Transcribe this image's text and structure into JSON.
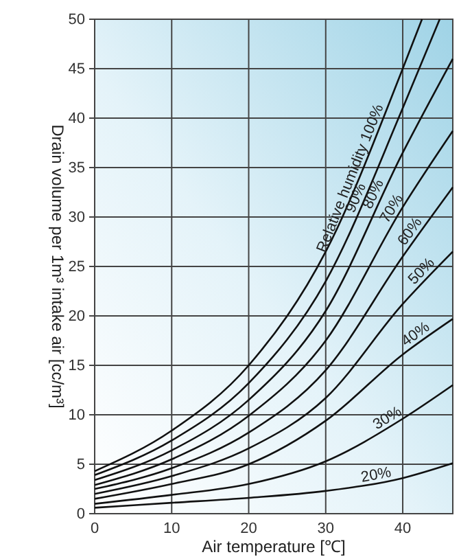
{
  "chart_data": {
    "type": "line",
    "xlabel": "Air temperature [℃]",
    "ylabel": "Drain volume per 1m³ intake air [cc/m³]",
    "annotations": [
      "Relative humidity"
    ],
    "xlim": [
      0,
      46.5
    ],
    "ylim": [
      0,
      50
    ],
    "xticks": [
      0,
      10,
      20,
      30,
      40
    ],
    "yticks": [
      0,
      5,
      10,
      15,
      20,
      25,
      30,
      35,
      40,
      45,
      50
    ],
    "grid": true,
    "marker": "none",
    "line_style": "solid",
    "series": [
      {
        "name": "100%",
        "color": "#111111",
        "x": [
          0,
          10,
          20,
          30,
          40,
          42.5
        ],
        "values": [
          4.3,
          8.4,
          15.0,
          26.5,
          45,
          50
        ]
      },
      {
        "name": "90%",
        "color": "#111111",
        "x": [
          0,
          10,
          20,
          30,
          40,
          44.8
        ],
        "values": [
          3.9,
          7.4,
          13.2,
          23.5,
          41,
          50
        ]
      },
      {
        "name": "80%",
        "color": "#111111",
        "x": [
          0,
          10,
          20,
          30,
          40,
          46.5
        ],
        "values": [
          3.4,
          6.4,
          11.5,
          20.5,
          36.5,
          46
        ]
      },
      {
        "name": "70%",
        "color": "#111111",
        "x": [
          0,
          10,
          20,
          30,
          40,
          46.5
        ],
        "values": [
          2.9,
          5.5,
          9.9,
          17.5,
          31,
          38.7
        ]
      },
      {
        "name": "60%",
        "color": "#111111",
        "x": [
          0,
          10,
          20,
          30,
          40,
          46.5
        ],
        "values": [
          2.5,
          4.6,
          8.2,
          14.5,
          26,
          33
        ]
      },
      {
        "name": "50%",
        "color": "#111111",
        "x": [
          0,
          10,
          20,
          30,
          40,
          46.5
        ],
        "values": [
          2.0,
          3.8,
          6.6,
          11.7,
          21.2,
          26.5
        ]
      },
      {
        "name": "40%",
        "color": "#111111",
        "x": [
          0,
          10,
          20,
          30,
          40,
          46.5
        ],
        "values": [
          1.5,
          3.0,
          5.0,
          9.4,
          16.1,
          19.7
        ]
      },
      {
        "name": "30%",
        "color": "#111111",
        "x": [
          0,
          10,
          20,
          30,
          40,
          46.5
        ],
        "values": [
          1.0,
          1.9,
          3.0,
          5.3,
          9.6,
          13.0
        ]
      },
      {
        "name": "20%",
        "color": "#111111",
        "x": [
          0,
          10,
          20,
          30,
          40,
          46.5
        ],
        "values": [
          0.6,
          1.1,
          1.6,
          2.3,
          3.6,
          5.1
        ]
      }
    ]
  }
}
